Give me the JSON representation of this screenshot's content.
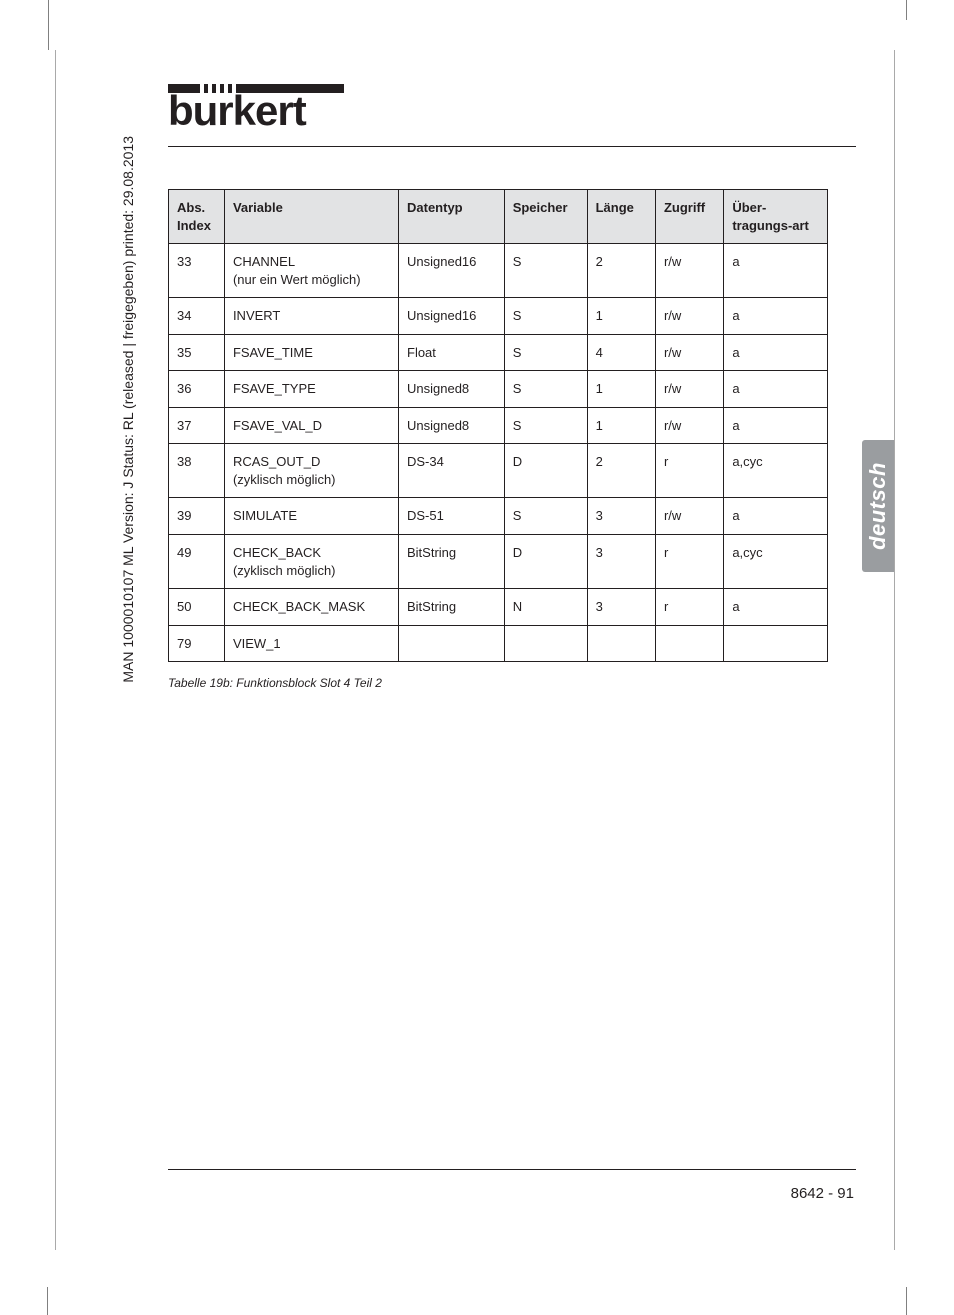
{
  "logo_text": "burkert",
  "side_meta": "MAN  1000010107  ML  Version: J  Status: RL (released | freigegeben)  printed: 29.08.2013",
  "lang_tab": "deutsch",
  "table": {
    "headers": [
      "Abs. Index",
      "Variable",
      "Datentyp",
      "Speicher",
      "Länge",
      "Zugriff",
      "Über-tragungs-art"
    ],
    "rows": [
      [
        "33",
        "CHANNEL\n(nur ein Wert möglich)",
        "Unsigned16",
        "S",
        "2",
        "r/w",
        "a"
      ],
      [
        "34",
        "INVERT",
        "Unsigned16",
        "S",
        "1",
        "r/w",
        "a"
      ],
      [
        "35",
        "FSAVE_TIME",
        "Float",
        "S",
        "4",
        "r/w",
        "a"
      ],
      [
        "36",
        "FSAVE_TYPE",
        "Unsigned8",
        "S",
        "1",
        "r/w",
        "a"
      ],
      [
        "37",
        "FSAVE_VAL_D",
        "Unsigned8",
        "S",
        "1",
        "r/w",
        "a"
      ],
      [
        "38",
        "RCAS_OUT_D\n(zyklisch möglich)",
        "DS-34",
        "D",
        "2",
        "r",
        "a,cyc"
      ],
      [
        "39",
        "SIMULATE",
        "DS-51",
        "S",
        "3",
        "r/w",
        "a"
      ],
      [
        "49",
        "CHECK_BACK\n(zyklisch möglich)",
        "BitString",
        "D",
        "3",
        "r",
        "a,cyc"
      ],
      [
        "50",
        "CHECK_BACK_MASK",
        "BitString",
        "N",
        "3",
        "r",
        "a"
      ],
      [
        "79",
        "VIEW_1",
        "",
        "",
        "",
        "",
        ""
      ]
    ]
  },
  "caption": "Tabelle 19b: Funktionsblock Slot 4 Teil 2",
  "footer": "8642  -  91",
  "colors": {
    "text": "#231f20",
    "header_bg": "#e2e3e4",
    "tab_bg": "#9a9da0",
    "crop": "#808080"
  }
}
